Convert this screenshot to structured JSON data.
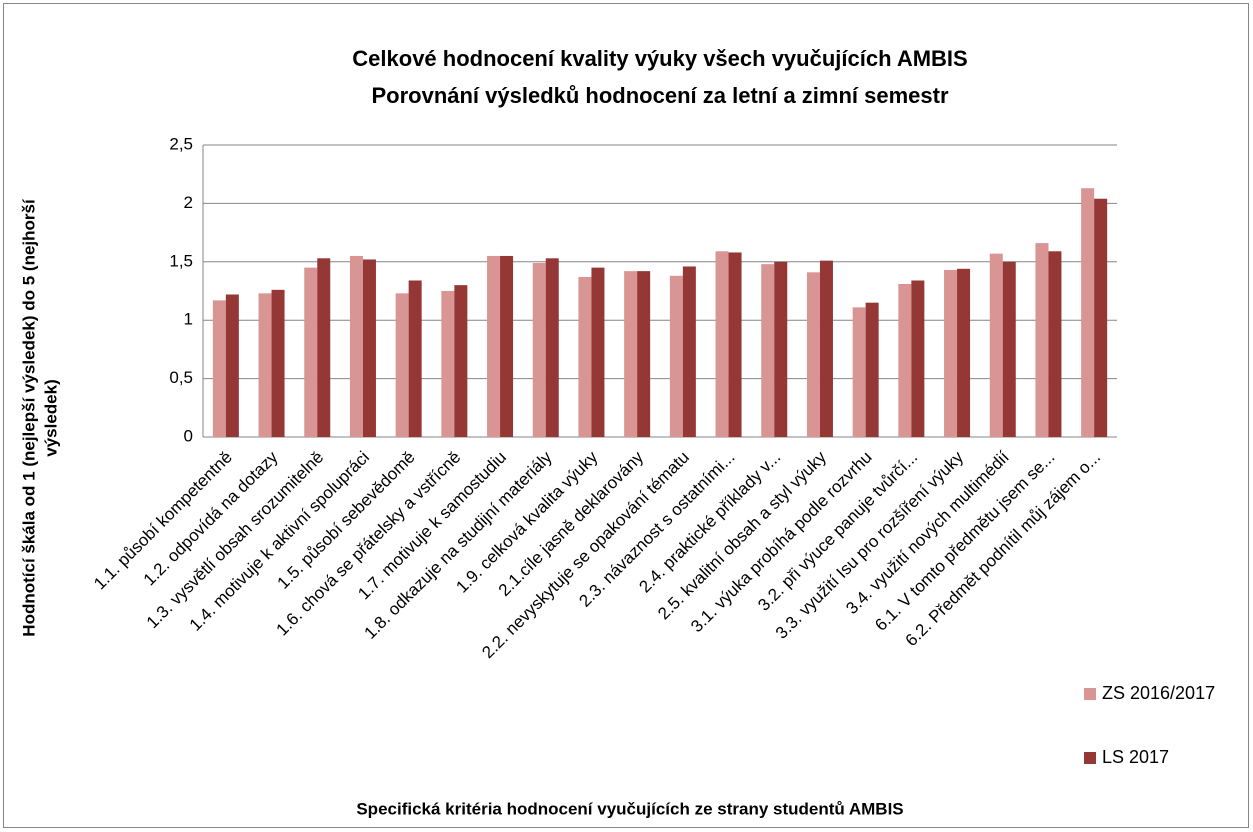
{
  "chart_data": {
    "type": "bar",
    "title": "Celkové hodnocení kvality výuky všech vyučujících AMBIS",
    "subtitle": "Porovnání výsledků hodnocení za letní a zimní semestr",
    "y_label_lines": [
      "Hodnotící škála od 1  (nejlepší výsledek) do 5 (nejhorší",
      "výsledek)"
    ],
    "x_label": "Specifická kritéria hodnocení vyučujících ze strany studentů AMBIS",
    "categories": [
      "1.1. působí kompetentně",
      "1.2. odpovídá na dotazy",
      "1.3. vysvětlí obsah srozumitelně",
      "1.4. motivuje k aktivní spolupráci",
      "1.5. působí sebevědomě",
      "1.6. chová se přátelsky a vstřícně",
      "1.7. motivuje k samostudiu",
      "1.8. odkazuje na studijní materiály",
      "1.9. celková kvalita výuky",
      "2.1.cíle jasně deklarovány",
      "2.2. nevyskytuje se opakování tématu",
      "2.3. návaznost s ostatními...",
      "2.4. praktické příklady v...",
      "2.5. kvalitní obsah a styl výuky",
      "3.1. výuka probíhá podle rozvrhu",
      "3.2. při výuce panuje tvůrčí...",
      "3.3. využití Isu pro rozšíření výuky",
      "3.4. využití nových multimédií",
      "6.1. V tomto předmětu jsem se...",
      "6.2. Předmět podnítil můj zájem o..."
    ],
    "series": [
      {
        "name": "ZS 2016/2017",
        "color": "#d99594",
        "values": [
          1.17,
          1.23,
          1.45,
          1.55,
          1.23,
          1.25,
          1.55,
          1.49,
          1.37,
          1.42,
          1.38,
          1.59,
          1.48,
          1.41,
          1.11,
          1.31,
          1.43,
          1.57,
          1.66,
          2.13
        ]
      },
      {
        "name": "LS 2017",
        "color": "#953735",
        "values": [
          1.22,
          1.26,
          1.53,
          1.52,
          1.34,
          1.3,
          1.55,
          1.53,
          1.45,
          1.42,
          1.46,
          1.58,
          1.5,
          1.51,
          1.15,
          1.34,
          1.44,
          1.5,
          1.59,
          2.04
        ]
      }
    ],
    "ylim": [
      0,
      2.5
    ],
    "yticks": [
      0,
      {
        "value": 0.5,
        "label": "0,5"
      },
      1,
      {
        "value": 1.5,
        "label": "1,5"
      },
      2,
      {
        "value": 2.5,
        "label": "2,5"
      }
    ],
    "grid": true,
    "legend": "right"
  }
}
